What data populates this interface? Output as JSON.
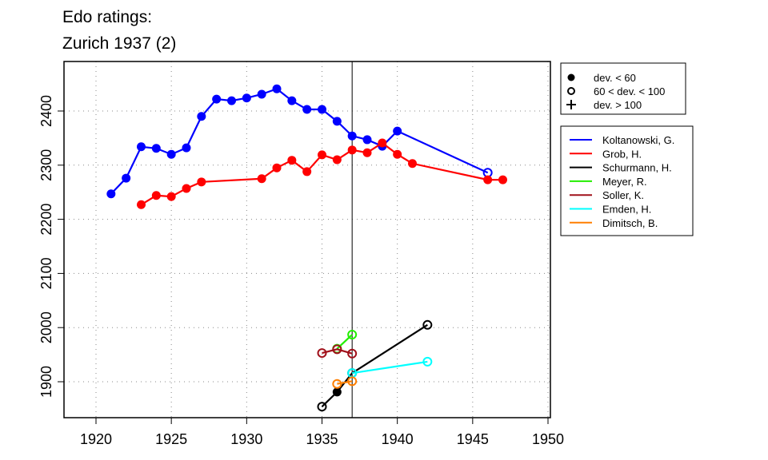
{
  "chart_data": {
    "type": "line",
    "title": [
      "Edo ratings:",
      "Zurich 1937 (2)"
    ],
    "xlabel": "",
    "ylabel": "",
    "xlim": [
      1918,
      1950.3
    ],
    "ylim": [
      1845,
      2495
    ],
    "xticks": [
      1920,
      1925,
      1930,
      1935,
      1940,
      1945,
      1950
    ],
    "yticks": [
      1900,
      2000,
      2100,
      2200,
      2300,
      2400
    ],
    "grid": true,
    "event_year": 1937,
    "marker_legend": {
      "placement": "top-right outside",
      "items": [
        {
          "marker": "filled",
          "label": "dev. < 60"
        },
        {
          "marker": "open",
          "label": "60 < dev. < 100"
        },
        {
          "marker": "plus",
          "label": "dev. > 100"
        }
      ]
    },
    "series": [
      {
        "name": "Koltanowski, G.",
        "color": "#0000ff",
        "points": [
          [
            1921,
            2247,
            "filled"
          ],
          [
            1922,
            2276,
            "filled"
          ],
          [
            1923,
            2334,
            "filled"
          ],
          [
            1924,
            2331,
            "filled"
          ],
          [
            1925,
            2320,
            "filled"
          ],
          [
            1926,
            2332,
            "filled"
          ],
          [
            1927,
            2390,
            "filled"
          ],
          [
            1928,
            2422,
            "filled"
          ],
          [
            1929,
            2419,
            "filled"
          ],
          [
            1930,
            2424,
            "filled"
          ],
          [
            1931,
            2431,
            "filled"
          ],
          [
            1932,
            2441,
            "filled"
          ],
          [
            1933,
            2419,
            "filled"
          ],
          [
            1934,
            2403,
            "filled"
          ],
          [
            1935,
            2403,
            "filled"
          ],
          [
            1936,
            2381,
            "filled"
          ],
          [
            1937,
            2354,
            "filled"
          ],
          [
            1938,
            2347,
            "filled"
          ],
          [
            1939,
            2335,
            "filled"
          ],
          [
            1940,
            2363,
            "filled"
          ],
          [
            1946,
            2286,
            "open"
          ]
        ]
      },
      {
        "name": "Grob, H.",
        "color": "#ff0000",
        "points": [
          [
            1923,
            2227,
            "filled"
          ],
          [
            1924,
            2244,
            "filled"
          ],
          [
            1925,
            2242,
            "filled"
          ],
          [
            1926,
            2257,
            "filled"
          ],
          [
            1927,
            2269,
            "filled"
          ],
          [
            1931,
            2275,
            "filled"
          ],
          [
            1932,
            2295,
            "filled"
          ],
          [
            1933,
            2309,
            "filled"
          ],
          [
            1934,
            2288,
            "filled"
          ],
          [
            1935,
            2319,
            "filled"
          ],
          [
            1936,
            2310,
            "filled"
          ],
          [
            1937,
            2328,
            "filled"
          ],
          [
            1938,
            2323,
            "filled"
          ],
          [
            1939,
            2341,
            "filled"
          ],
          [
            1940,
            2320,
            "filled"
          ],
          [
            1941,
            2303,
            "filled"
          ],
          [
            1946,
            2273,
            "filled"
          ],
          [
            1947,
            2273,
            "filled"
          ]
        ]
      },
      {
        "name": "Schurmann, H.",
        "color": "#000000",
        "points": [
          [
            1935,
            1854,
            "open"
          ],
          [
            1936,
            1881,
            "filled"
          ],
          [
            1937,
            1916,
            "open"
          ],
          [
            1942,
            2005,
            "open"
          ]
        ]
      },
      {
        "name": "Meyer, R.",
        "color": "#22ee00",
        "points": [
          [
            1936,
            1961,
            "open"
          ],
          [
            1937,
            1987,
            "open"
          ]
        ]
      },
      {
        "name": "Soller, K.",
        "color": "#a0101a",
        "points": [
          [
            1935,
            1953,
            "open"
          ],
          [
            1936,
            1960,
            "open"
          ],
          [
            1937,
            1952,
            "open"
          ]
        ]
      },
      {
        "name": "Emden, H.",
        "color": "#00ffff",
        "points": [
          [
            1937,
            1916,
            "open"
          ],
          [
            1942,
            1937,
            "open"
          ]
        ]
      },
      {
        "name": "Dimitsch, B.",
        "color": "#ff7f00",
        "points": [
          [
            1936,
            1896,
            "open"
          ],
          [
            1937,
            1901,
            "open"
          ]
        ]
      }
    ]
  }
}
